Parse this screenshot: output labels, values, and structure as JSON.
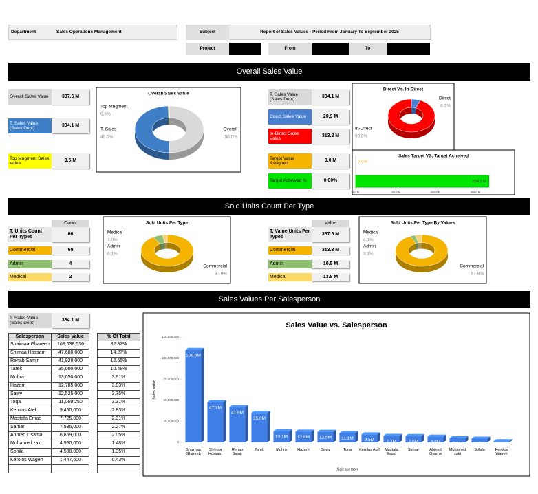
{
  "header": {
    "department_label": "Department",
    "department": "Sales Operations Management",
    "subject_label": "Subject",
    "subject": "Report of Sales Values - Period From January To September 2025",
    "project_label": "Project",
    "from_label": "From",
    "to_label": "To"
  },
  "sections": [
    "Overall Sales Value",
    "Sold Units Count Per Type",
    "Sales Values Per Salesperson"
  ],
  "kpis": [
    {
      "label": "Overall Sales Value",
      "value": "337.6 M"
    },
    {
      "label": "T. Sales Value (Sales Dept)",
      "value": "334.1 M"
    },
    {
      "label": "Top Mngment Sales Value",
      "value": "3.5 M"
    },
    {
      "label": "T. Sales Value (Sales Dept)",
      "value": "334.1 M"
    },
    {
      "label": "Direct Sales Value",
      "value": "20.9 M"
    },
    {
      "label": "In-Direct Sales Value",
      "value": "313.2 M"
    },
    {
      "label": "Target Value Assigned",
      "value": "0.0 M"
    },
    {
      "label": "Target Acheived %",
      "value": "0.00%"
    },
    {
      "label": "T. Sales Value (Sales Dept)",
      "value": "334.1 M"
    }
  ],
  "units_table": {
    "label": "T. Units Count Per Types",
    "header": "Count",
    "total": 66,
    "rows": [
      {
        "label": "Commercial",
        "value": 60
      },
      {
        "label": "Admin",
        "value": 4
      },
      {
        "label": "Medical",
        "value": 2
      }
    ]
  },
  "values_table": {
    "label": "T. Value Units Per Types",
    "header": "Value",
    "total": "337.6 M",
    "rows": [
      {
        "label": "Commercial",
        "value": "313.3 M"
      },
      {
        "label": "Admin",
        "value": "10.5 M"
      },
      {
        "label": "Medical",
        "value": "13.8 M"
      }
    ]
  },
  "salesperson_table": {
    "headers": [
      "Salesperson",
      "Sales Value",
      "% Of Total"
    ],
    "rows": [
      [
        "Shaimaa Ghareeb",
        "109,638,536",
        "32.82%"
      ],
      [
        "Shimaa Hossam",
        "47,680,000",
        "14.27%"
      ],
      [
        "Rehab Samir",
        "41,928,000",
        "12.55%"
      ],
      [
        "Tarek",
        "35,000,000",
        "10.48%"
      ],
      [
        "Mohra",
        "13,050,000",
        "3.91%"
      ],
      [
        "Hazem",
        "12,785,000",
        "3.83%"
      ],
      [
        "Sawy",
        "12,525,000",
        "3.75%"
      ],
      [
        "Toqa",
        "11,069,250",
        "3.31%"
      ],
      [
        "Kerolos Atef",
        "9,450,000",
        "2.83%"
      ],
      [
        "Mostafa Emad",
        "7,725,000",
        "2.31%"
      ],
      [
        "Samar",
        "7,585,000",
        "2.27%"
      ],
      [
        "Ahmed Osama",
        "6,859,000",
        "2.05%"
      ],
      [
        "Mohamed zaki",
        "4,950,000",
        "1.48%"
      ],
      [
        "Sohila",
        "4,500,000",
        "1.35%"
      ],
      [
        "Kerolos Wageh",
        "1,447,500",
        "0.43%"
      ]
    ]
  },
  "chart_data": [
    {
      "type": "pie",
      "title": "Overall Sales Value",
      "categories": [
        "Overall",
        "T. Sales",
        "Top Mngment"
      ],
      "values": [
        50,
        49.5,
        0.5
      ],
      "value_labels": [
        "50.0%",
        "49.5%",
        "0.5%"
      ],
      "colors": [
        "#d9d9d9",
        "#3f7fc8",
        "#c8c83c"
      ]
    },
    {
      "type": "pie",
      "title": "Direct Vs. In-Direct",
      "categories": [
        "Direct",
        "In-Direct"
      ],
      "values": [
        6.2,
        93.8
      ],
      "value_labels": [
        "6.2%",
        "93.8%"
      ],
      "colors": [
        "#4a7fd0",
        "#ff0000"
      ]
    },
    {
      "type": "bar",
      "orientation": "horizontal",
      "title": "Sales Target VS. Target Acheived",
      "values": [
        0,
        334.1
      ],
      "value_labels": [
        "0.0 M",
        "334.1 M"
      ],
      "colors": [
        "#f5b400",
        "#00e600"
      ],
      "xlim": [
        0,
        390
      ],
      "xticks": [
        {
          "value": 0,
          "label": "0.0 M"
        },
        {
          "value": 100,
          "label": "100.0 M"
        },
        {
          "value": 200,
          "label": "200.0 M"
        },
        {
          "value": 300,
          "label": "300.0 M"
        }
      ]
    },
    {
      "type": "pie",
      "title": "Sold Units Per Type",
      "categories": [
        "Commercial",
        "Admin",
        "Medical"
      ],
      "values": [
        90.9,
        6.1,
        3
      ],
      "value_labels": [
        "90.9%",
        "6.1%",
        "3.0%"
      ],
      "colors": [
        "#f5b400",
        "#8fbf70",
        "#f3d27a"
      ]
    },
    {
      "type": "pie",
      "title": "Sold Units Per Type By Values",
      "categories": [
        "Commercial",
        "Admin",
        "Medical"
      ],
      "values": [
        92.8,
        3.1,
        4.1
      ],
      "value_labels": [
        "92.8%",
        "3.1%",
        "4.1%"
      ],
      "colors": [
        "#f5b400",
        "#8fbf70",
        "#f3d27a"
      ]
    },
    {
      "type": "bar",
      "orientation": "vertical",
      "title": "Sales Value vs. Salesperson",
      "x_label": "Salesperson",
      "y_label": "Sales Value",
      "color": "#3f7fe6",
      "categories": [
        "Shaimaa Ghareeb",
        "Shimaa Hossam",
        "Rehab Samir",
        "Tarek",
        "Mohra",
        "Hazem",
        "Sawy",
        "Toqa",
        "Kerolos Atef",
        "Mostafa Emad",
        "Samar",
        "Ahmed Osama",
        "Mohamed zaki",
        "Sohila",
        "Kerolos Wageh"
      ],
      "values": [
        109638536,
        47680000,
        41928000,
        35000000,
        13050000,
        12785000,
        12525000,
        11069250,
        9450000,
        7725000,
        7585000,
        6859000,
        4950000,
        4500000,
        1447500
      ],
      "value_labels": [
        "109.6M",
        "47.7M",
        "41.9M",
        "35.0M",
        "13.1M",
        "12.8M",
        "12.5M",
        "11.1M",
        "9.5M",
        "7.7M",
        "7.6M",
        "6.9M",
        "5.0M",
        "4.5M",
        "1.4M"
      ],
      "ylim": [
        0,
        125000000
      ],
      "yticks": [
        0,
        {
          "value": 25000000,
          "label": "25,000,000"
        },
        {
          "value": 50000000,
          "label": "50,000,000"
        },
        {
          "value": 75000000,
          "label": "75,000,000"
        },
        {
          "value": 100000000,
          "label": "100,000,000"
        },
        {
          "value": 125000000,
          "label": "125,000,000"
        }
      ]
    }
  ]
}
